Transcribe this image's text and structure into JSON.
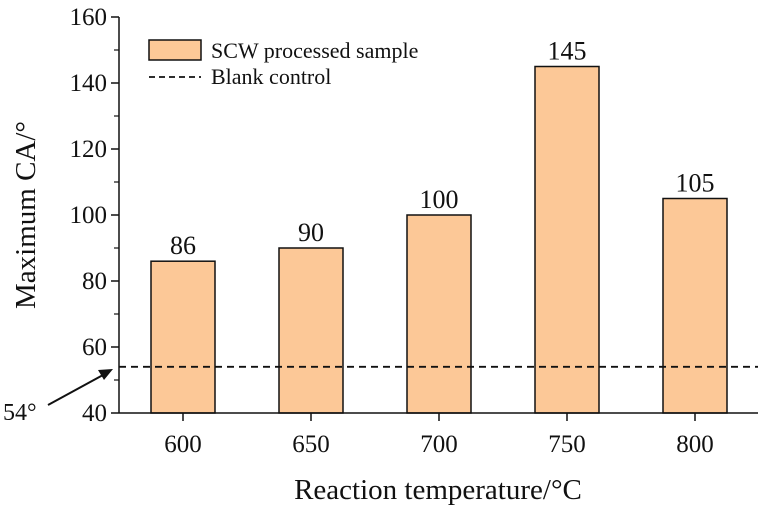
{
  "chart_data": {
    "type": "bar",
    "title": "",
    "xlabel": "Reaction temperature/°C",
    "ylabel": "Maximum CA/°",
    "categories": [
      "600",
      "650",
      "700",
      "750",
      "800"
    ],
    "series": [
      {
        "name": "SCW processed sample",
        "values": [
          86,
          90,
          100,
          145,
          105
        ]
      }
    ],
    "data_labels": [
      "86",
      "90",
      "100",
      "145",
      "105"
    ],
    "reference_line": {
      "name": "Blank control",
      "value": 54,
      "style": "dashed"
    },
    "annotation": {
      "text": "54°"
    },
    "ylim": [
      40,
      160
    ],
    "yticks": [
      40,
      60,
      80,
      100,
      120,
      140,
      160
    ],
    "ytick_labels": [
      "40",
      "60",
      "80",
      "100",
      "120",
      "140",
      "160"
    ],
    "legend_position": "top-left",
    "grid": false
  },
  "colors": {
    "bar_fill": "#FCC897",
    "bar_stroke": "#111111",
    "axis": "#111111",
    "reference_line": "#111111"
  }
}
